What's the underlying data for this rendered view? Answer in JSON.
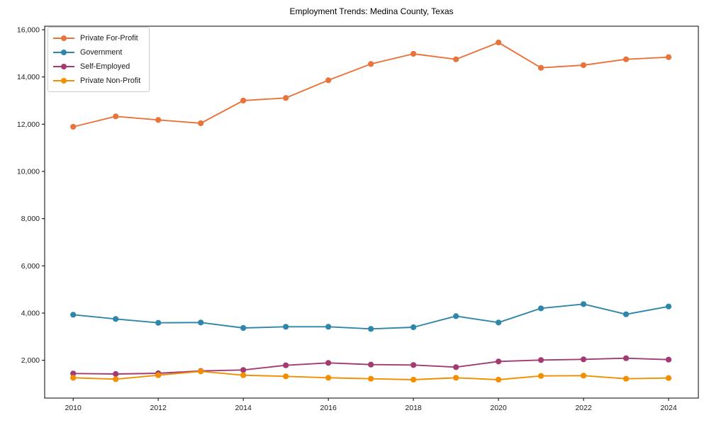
{
  "figure": {
    "background": "#ffffff",
    "axis_color": "#000000",
    "tick_label_color": "#1a1a1a"
  },
  "chart_data": {
    "type": "line",
    "title": "Employment Trends: Medina County, Texas",
    "xlabel": "",
    "ylabel": "",
    "grid": false,
    "legend_position": "upper-left",
    "x": [
      2010,
      2011,
      2012,
      2013,
      2014,
      2015,
      2016,
      2017,
      2018,
      2019,
      2020,
      2021,
      2022,
      2023,
      2024
    ],
    "x_ticks": [
      2010,
      2012,
      2014,
      2016,
      2018,
      2020,
      2022,
      2024
    ],
    "x_tick_labels": [
      "2010",
      "2012",
      "2014",
      "2016",
      "2018",
      "2020",
      "2022",
      "2024"
    ],
    "y_ticks": [
      2000,
      4000,
      6000,
      8000,
      10000,
      12000,
      14000,
      16000
    ],
    "y_tick_labels": [
      "2,000",
      "4,000",
      "6,000",
      "8,000",
      "10,000",
      "12,000",
      "14,000",
      "16,000"
    ],
    "xlim": [
      2009.33,
      2024.7
    ],
    "ylim": [
      400,
      16150
    ],
    "series": [
      {
        "name": "Private For-Profit",
        "color": "#E8743B",
        "values": [
          11890,
          12330,
          12180,
          12040,
          13000,
          13110,
          13860,
          14550,
          14980,
          14750,
          15460,
          14390,
          14500,
          14750,
          14840
        ]
      },
      {
        "name": "Government",
        "color": "#2E86AB",
        "values": [
          3930,
          3750,
          3590,
          3600,
          3370,
          3420,
          3420,
          3330,
          3400,
          3870,
          3600,
          4200,
          4380,
          3950,
          4280
        ]
      },
      {
        "name": "Self-Employed",
        "color": "#A23B72",
        "values": [
          1440,
          1420,
          1450,
          1550,
          1590,
          1790,
          1890,
          1820,
          1800,
          1710,
          1950,
          2010,
          2040,
          2090,
          2030
        ]
      },
      {
        "name": "Private Non-Profit",
        "color": "#F18F01",
        "values": [
          1260,
          1200,
          1370,
          1530,
          1370,
          1320,
          1260,
          1220,
          1180,
          1260,
          1180,
          1340,
          1350,
          1220,
          1250
        ]
      }
    ]
  }
}
